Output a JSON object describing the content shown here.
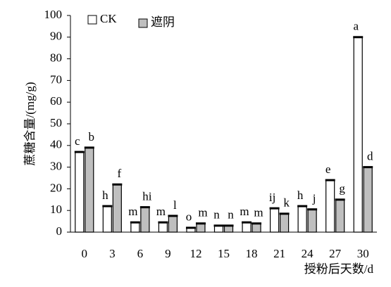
{
  "chart_data": {
    "type": "bar",
    "ylabel": "蔗糖含量/(mg/g)",
    "xlabel": "授粉后天数/d",
    "categories": [
      "0",
      "3",
      "6",
      "9",
      "12",
      "15",
      "18",
      "21",
      "24",
      "27",
      "30"
    ],
    "series": [
      {
        "name": "CK",
        "color": "#ffffff",
        "values": [
          37,
          12,
          4.5,
          4.5,
          2,
          3,
          4.5,
          11,
          12,
          24,
          90
        ],
        "letters": [
          "c",
          "h",
          "m",
          "m",
          "o",
          "n",
          "m",
          "ij",
          "h",
          "e",
          "a"
        ]
      },
      {
        "name": "遮阴",
        "color": "#bfbfbf",
        "values": [
          39,
          22,
          11.5,
          7.5,
          4,
          3,
          4,
          8.5,
          10.5,
          15,
          30
        ],
        "letters": [
          "b",
          "f",
          "hi",
          "l",
          "m",
          "n",
          "m",
          "k",
          "j",
          "g",
          "d"
        ]
      }
    ],
    "ylim": [
      0,
      100
    ],
    "yticks": [
      0,
      10,
      20,
      30,
      40,
      50,
      60,
      70,
      80,
      90,
      100
    ],
    "grid": false,
    "legend": "top-left"
  }
}
